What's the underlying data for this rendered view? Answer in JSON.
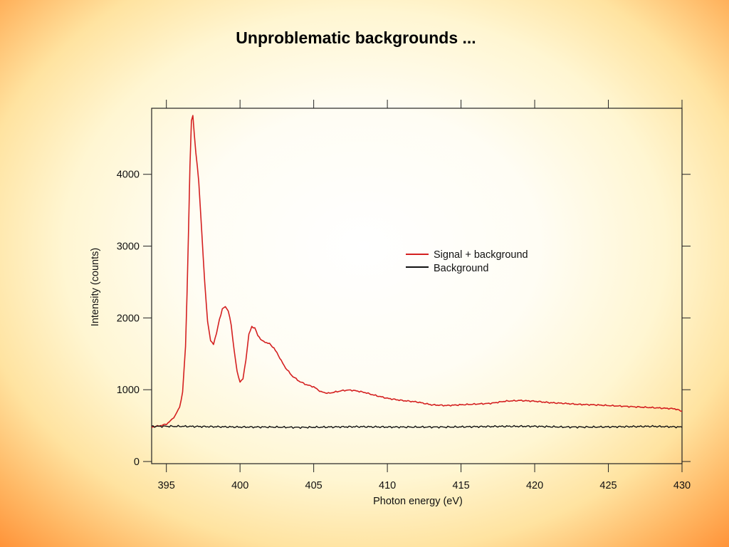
{
  "slide": {
    "title": "Unproblematic backgrounds ..."
  },
  "colors": {
    "signal": "#d42020",
    "background": "#111111",
    "axis": "#222222"
  },
  "chart_data": {
    "type": "line",
    "title": "",
    "xlabel": "Photon energy (eV)",
    "ylabel": "Intensity (counts)",
    "xlim": [
      394,
      430
    ],
    "ylim": [
      -30,
      4920
    ],
    "x_ticks": [
      395,
      400,
      405,
      410,
      415,
      420,
      425,
      430
    ],
    "y_ticks": [
      0,
      1000,
      2000,
      3000,
      4000
    ],
    "grid": false,
    "legend_position": "upper-right",
    "series": [
      {
        "name": "Signal + background",
        "color": "#d42020",
        "points": [
          [
            394.0,
            480
          ],
          [
            394.5,
            495
          ],
          [
            395.0,
            520
          ],
          [
            395.3,
            570
          ],
          [
            395.6,
            640
          ],
          [
            395.9,
            760
          ],
          [
            396.1,
            960
          ],
          [
            396.3,
            1600
          ],
          [
            396.45,
            2700
          ],
          [
            396.6,
            4100
          ],
          [
            396.7,
            4750
          ],
          [
            396.8,
            4820
          ],
          [
            396.9,
            4550
          ],
          [
            397.0,
            4300
          ],
          [
            397.2,
            3900
          ],
          [
            397.4,
            3200
          ],
          [
            397.6,
            2500
          ],
          [
            397.8,
            1950
          ],
          [
            398.0,
            1680
          ],
          [
            398.2,
            1640
          ],
          [
            398.4,
            1780
          ],
          [
            398.6,
            1980
          ],
          [
            398.8,
            2120
          ],
          [
            399.0,
            2160
          ],
          [
            399.2,
            2100
          ],
          [
            399.4,
            1900
          ],
          [
            399.6,
            1550
          ],
          [
            399.8,
            1250
          ],
          [
            400.0,
            1110
          ],
          [
            400.2,
            1150
          ],
          [
            400.4,
            1420
          ],
          [
            400.6,
            1770
          ],
          [
            400.8,
            1880
          ],
          [
            401.0,
            1860
          ],
          [
            401.2,
            1760
          ],
          [
            401.5,
            1680
          ],
          [
            402.0,
            1640
          ],
          [
            402.3,
            1580
          ],
          [
            402.6,
            1480
          ],
          [
            403.0,
            1330
          ],
          [
            403.5,
            1200
          ],
          [
            404.0,
            1120
          ],
          [
            404.5,
            1070
          ],
          [
            405.0,
            1040
          ],
          [
            405.5,
            970
          ],
          [
            406.0,
            950
          ],
          [
            406.5,
            970
          ],
          [
            407.0,
            990
          ],
          [
            407.5,
            995
          ],
          [
            408.0,
            980
          ],
          [
            408.5,
            960
          ],
          [
            409.0,
            930
          ],
          [
            410.0,
            880
          ],
          [
            411.0,
            850
          ],
          [
            412.0,
            830
          ],
          [
            413.0,
            790
          ],
          [
            414.0,
            780
          ],
          [
            415.0,
            790
          ],
          [
            416.0,
            800
          ],
          [
            417.0,
            810
          ],
          [
            418.0,
            840
          ],
          [
            419.0,
            850
          ],
          [
            420.0,
            840
          ],
          [
            421.0,
            820
          ],
          [
            422.0,
            810
          ],
          [
            423.0,
            795
          ],
          [
            424.0,
            790
          ],
          [
            425.0,
            780
          ],
          [
            426.0,
            770
          ],
          [
            427.0,
            760
          ],
          [
            428.0,
            750
          ],
          [
            429.0,
            740
          ],
          [
            429.5,
            735
          ],
          [
            430.0,
            700
          ]
        ]
      },
      {
        "name": "Background",
        "color": "#111111",
        "points": [
          [
            394.0,
            490
          ],
          [
            396.0,
            490
          ],
          [
            398.0,
            485
          ],
          [
            400.0,
            480
          ],
          [
            402.0,
            480
          ],
          [
            404.0,
            475
          ],
          [
            406.0,
            480
          ],
          [
            408.0,
            485
          ],
          [
            410.0,
            480
          ],
          [
            412.0,
            480
          ],
          [
            414.0,
            480
          ],
          [
            416.0,
            485
          ],
          [
            418.0,
            490
          ],
          [
            420.0,
            490
          ],
          [
            422.0,
            480
          ],
          [
            424.0,
            480
          ],
          [
            426.0,
            485
          ],
          [
            428.0,
            490
          ],
          [
            430.0,
            480
          ]
        ]
      }
    ]
  }
}
